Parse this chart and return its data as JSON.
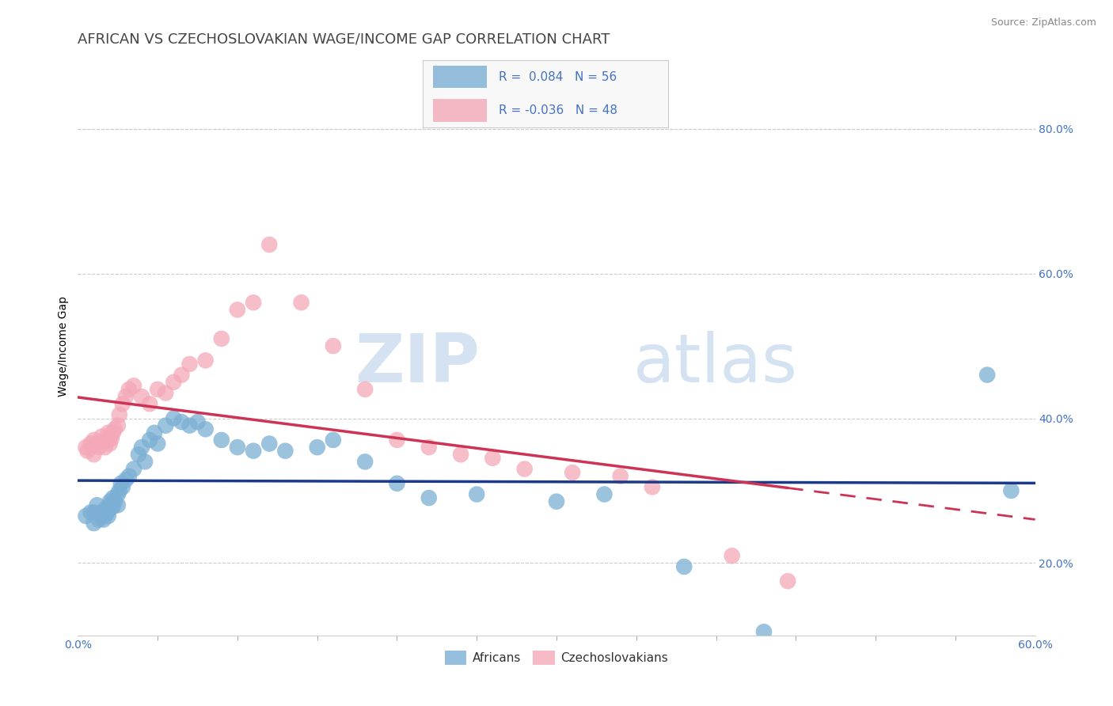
{
  "title": "AFRICAN VS CZECHOSLOVAKIAN WAGE/INCOME GAP CORRELATION CHART",
  "source_text": "Source: ZipAtlas.com",
  "ylabel": "Wage/Income Gap",
  "xlim": [
    0.0,
    0.6
  ],
  "ylim": [
    0.1,
    0.9
  ],
  "xtick_left_label": "0.0%",
  "xtick_right_label": "60.0%",
  "yticks_right": [
    0.2,
    0.4,
    0.6,
    0.8
  ],
  "ytick_labels_right": [
    "20.0%",
    "40.0%",
    "60.0%",
    "80.0%"
  ],
  "grid_color": "#cccccc",
  "watermark_zip": "ZIP",
  "watermark_atlas": "atlas",
  "legend_blue_r": "0.084",
  "legend_blue_n": "56",
  "legend_pink_r": "-0.036",
  "legend_pink_n": "48",
  "africans_color": "#7bafd4",
  "czechoslovakians_color": "#f4a8b8",
  "trendline_blue": "#1a3a8a",
  "trendline_pink": "#cc3355",
  "legend_text_color": "#4472c4",
  "title_color": "#444444",
  "source_color": "#888888",
  "africans_x": [
    0.005,
    0.008,
    0.01,
    0.01,
    0.012,
    0.013,
    0.015,
    0.015,
    0.016,
    0.017,
    0.018,
    0.018,
    0.019,
    0.02,
    0.02,
    0.02,
    0.022,
    0.022,
    0.023,
    0.025,
    0.025,
    0.026,
    0.027,
    0.028,
    0.03,
    0.032,
    0.035,
    0.038,
    0.04,
    0.042,
    0.045,
    0.048,
    0.05,
    0.055,
    0.06,
    0.065,
    0.07,
    0.075,
    0.08,
    0.09,
    0.1,
    0.11,
    0.12,
    0.13,
    0.15,
    0.16,
    0.18,
    0.2,
    0.22,
    0.25,
    0.3,
    0.33,
    0.38,
    0.43,
    0.57,
    0.585
  ],
  "africans_y": [
    0.265,
    0.27,
    0.255,
    0.27,
    0.28,
    0.26,
    0.27,
    0.265,
    0.26,
    0.275,
    0.268,
    0.272,
    0.265,
    0.28,
    0.275,
    0.285,
    0.29,
    0.278,
    0.285,
    0.295,
    0.28,
    0.3,
    0.31,
    0.305,
    0.315,
    0.32,
    0.33,
    0.35,
    0.36,
    0.34,
    0.37,
    0.38,
    0.365,
    0.39,
    0.4,
    0.395,
    0.39,
    0.395,
    0.385,
    0.37,
    0.36,
    0.355,
    0.365,
    0.355,
    0.36,
    0.37,
    0.34,
    0.31,
    0.29,
    0.295,
    0.285,
    0.295,
    0.195,
    0.105,
    0.46,
    0.3
  ],
  "czechoslovakians_x": [
    0.005,
    0.006,
    0.008,
    0.01,
    0.01,
    0.012,
    0.013,
    0.015,
    0.016,
    0.017,
    0.018,
    0.019,
    0.02,
    0.02,
    0.021,
    0.022,
    0.023,
    0.025,
    0.026,
    0.028,
    0.03,
    0.032,
    0.035,
    0.04,
    0.045,
    0.05,
    0.055,
    0.06,
    0.065,
    0.07,
    0.08,
    0.09,
    0.1,
    0.11,
    0.12,
    0.14,
    0.16,
    0.18,
    0.2,
    0.22,
    0.24,
    0.26,
    0.28,
    0.31,
    0.34,
    0.36,
    0.41,
    0.445
  ],
  "czechoslovakians_y": [
    0.36,
    0.355,
    0.365,
    0.35,
    0.37,
    0.365,
    0.36,
    0.375,
    0.368,
    0.36,
    0.37,
    0.38,
    0.365,
    0.375,
    0.372,
    0.38,
    0.385,
    0.39,
    0.405,
    0.42,
    0.43,
    0.44,
    0.445,
    0.43,
    0.42,
    0.44,
    0.435,
    0.45,
    0.46,
    0.475,
    0.48,
    0.51,
    0.55,
    0.56,
    0.64,
    0.56,
    0.5,
    0.44,
    0.37,
    0.36,
    0.35,
    0.345,
    0.33,
    0.325,
    0.32,
    0.305,
    0.21,
    0.175
  ],
  "title_fontsize": 13,
  "source_fontsize": 9,
  "axis_label_fontsize": 10,
  "tick_fontsize": 10
}
